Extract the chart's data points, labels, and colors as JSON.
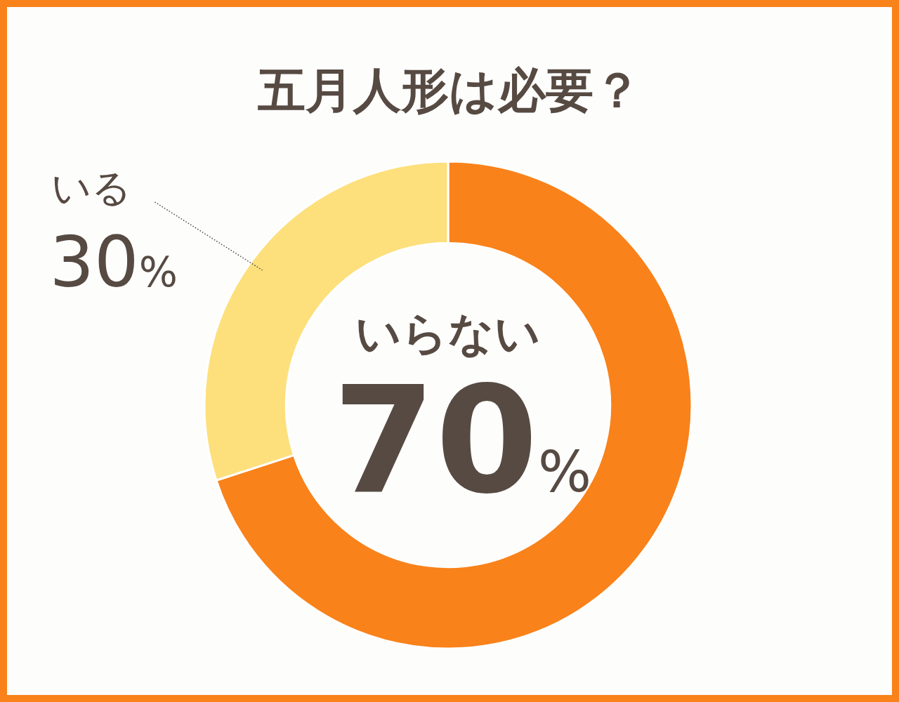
{
  "chart_data": {
    "type": "donut",
    "title": "五月人形は必要？",
    "categories": [
      "いらない",
      "いる"
    ],
    "values": [
      70,
      30
    ],
    "colors": [
      "#f9821a",
      "#fde07c"
    ],
    "value_labels": [
      "70%",
      "30%"
    ]
  }
}
